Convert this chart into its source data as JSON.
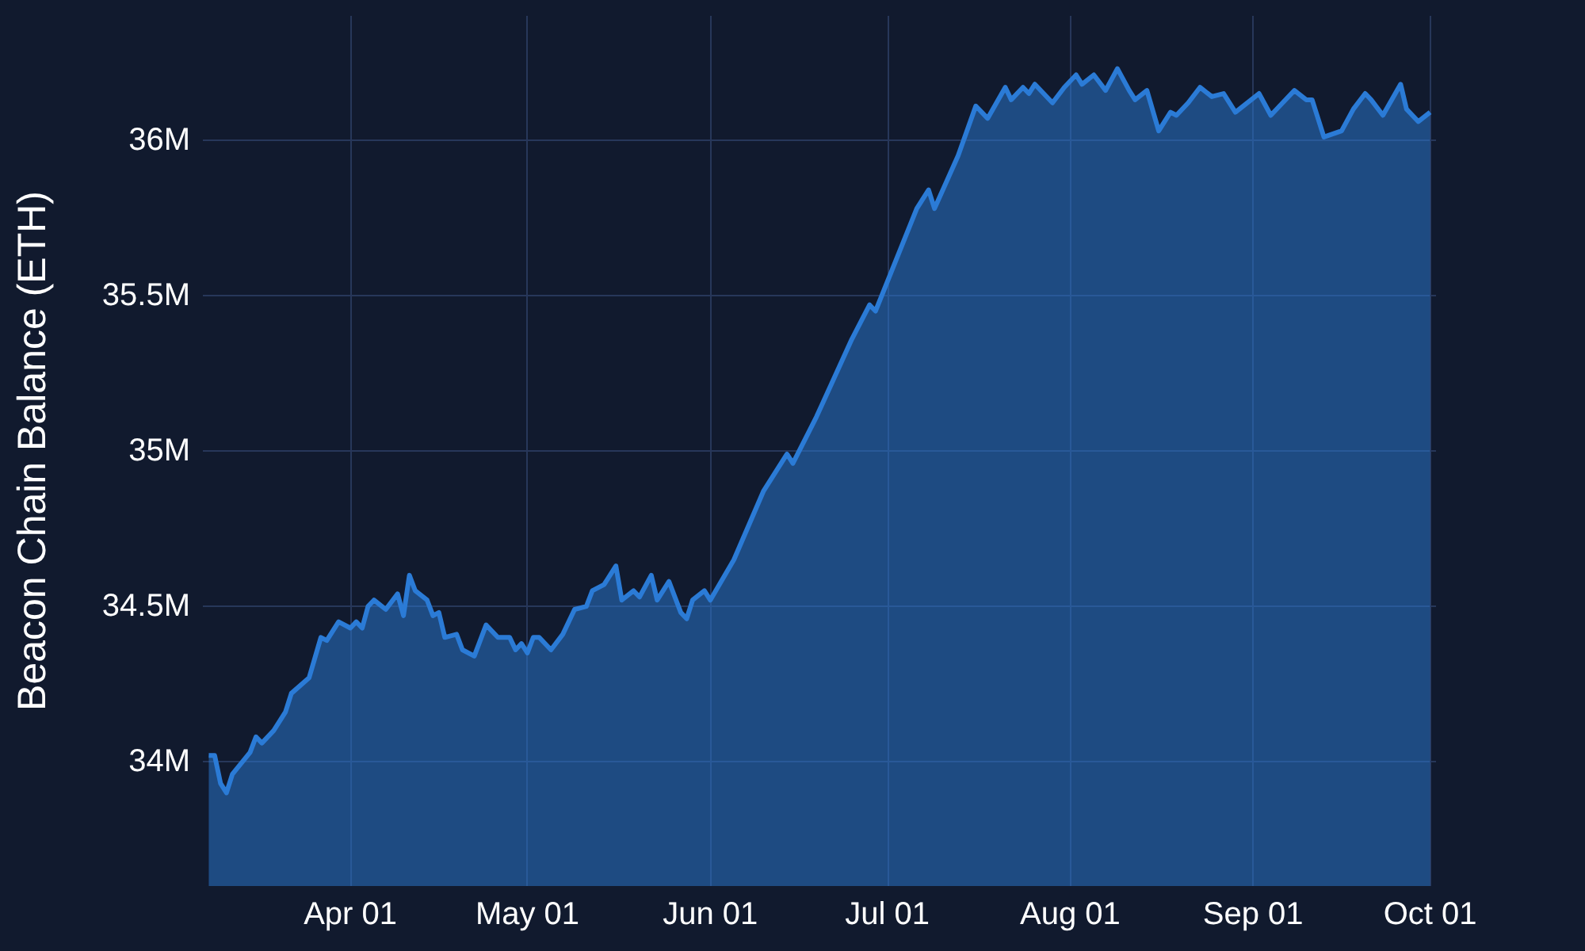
{
  "chart_data": {
    "type": "area",
    "ylabel": "Beacon Chain Balance (ETH)",
    "x": [
      "--03-08",
      "--03-09",
      "--03-10",
      "--03-11",
      "--03-12",
      "--03-15",
      "--03-16",
      "--03-17",
      "--03-19",
      "--03-21",
      "--03-22",
      "--03-25",
      "--03-27",
      "--03-28",
      "--03-30",
      "--04-01",
      "--04-02",
      "--04-03",
      "--04-04",
      "--04-05",
      "--04-07",
      "--04-09",
      "--04-10",
      "--04-11",
      "--04-12",
      "--04-14",
      "--04-15",
      "--04-16",
      "--04-17",
      "--04-19",
      "--04-20",
      "--04-22",
      "--04-24",
      "--04-26",
      "--04-28",
      "--04-29",
      "--04-30",
      "--05-01",
      "--05-02",
      "--05-03",
      "--05-05",
      "--05-07",
      "--05-09",
      "--05-11",
      "--05-12",
      "--05-14",
      "--05-16",
      "--05-17",
      "--05-19",
      "--05-20",
      "--05-22",
      "--05-23",
      "--05-25",
      "--05-27",
      "--05-28",
      "--05-29",
      "--05-31",
      "--06-01",
      "--06-05",
      "--06-10",
      "--06-14",
      "--06-15",
      "--06-19",
      "--06-25",
      "--06-28",
      "--06-29",
      "--07-06",
      "--07-08",
      "--07-09",
      "--07-13",
      "--07-16",
      "--07-18",
      "--07-21",
      "--07-22",
      "--07-24",
      "--07-25",
      "--07-26",
      "--07-29",
      "--07-31",
      "--08-02",
      "--08-03",
      "--08-05",
      "--08-07",
      "--08-09",
      "--08-11",
      "--08-12",
      "--08-14",
      "--08-16",
      "--08-18",
      "--08-19",
      "--08-21",
      "--08-23",
      "--08-25",
      "--08-27",
      "--08-29",
      "--08-31",
      "--09-02",
      "--09-04",
      "--09-06",
      "--09-08",
      "--09-10",
      "--09-11",
      "--09-13",
      "--09-16",
      "--09-18",
      "--09-20",
      "--09-21",
      "--09-23",
      "--09-26",
      "--09-27",
      "--09-29",
      "--10-01"
    ],
    "series": [
      {
        "color": "#2b7bd6",
        "values": [
          34.02,
          34.02,
          33.93,
          33.9,
          33.96,
          34.03,
          34.08,
          34.06,
          34.1,
          34.16,
          34.22,
          34.27,
          34.4,
          34.39,
          34.45,
          34.43,
          34.45,
          34.43,
          34.5,
          34.52,
          34.49,
          34.54,
          34.47,
          34.6,
          34.55,
          34.52,
          34.47,
          34.48,
          34.4,
          34.41,
          34.36,
          34.34,
          34.44,
          34.4,
          34.4,
          34.36,
          34.38,
          34.35,
          34.4,
          34.4,
          34.36,
          34.41,
          34.49,
          34.5,
          34.55,
          34.57,
          34.63,
          34.52,
          34.55,
          34.53,
          34.6,
          34.52,
          34.58,
          34.48,
          34.46,
          34.52,
          34.55,
          34.52,
          34.65,
          34.87,
          34.99,
          34.96,
          35.11,
          35.36,
          35.47,
          35.45,
          35.78,
          35.84,
          35.78,
          35.95,
          36.11,
          36.07,
          36.17,
          36.13,
          36.17,
          36.15,
          36.18,
          36.12,
          36.17,
          36.21,
          36.18,
          36.21,
          36.16,
          36.23,
          36.16,
          36.13,
          36.16,
          36.03,
          36.09,
          36.08,
          36.12,
          36.17,
          36.14,
          36.15,
          36.09,
          36.12,
          36.15,
          36.08,
          36.12,
          36.16,
          36.13,
          36.13,
          36.01,
          36.03,
          36.1,
          36.15,
          36.13,
          36.08,
          36.18,
          36.1,
          36.06,
          36.09
        ]
      }
    ],
    "xlim": [
      "--03-07",
      "--10-02"
    ],
    "xticks": [
      {
        "value": "--04-01",
        "label": "Apr 01"
      },
      {
        "value": "--05-01",
        "label": "May 01"
      },
      {
        "value": "--06-01",
        "label": "Jun 01"
      },
      {
        "value": "--07-01",
        "label": "Jul 01"
      },
      {
        "value": "--08-01",
        "label": "Aug 01"
      },
      {
        "value": "--09-01",
        "label": "Sep 01"
      },
      {
        "value": "--10-01",
        "label": "Oct 01"
      }
    ],
    "ylim": [
      33.6,
      36.4
    ],
    "yticks": [
      {
        "value": 34,
        "label": "34M"
      },
      {
        "value": 34.5,
        "label": "34.5M"
      },
      {
        "value": 35,
        "label": "35M"
      },
      {
        "value": 35.5,
        "label": "35.5M"
      },
      {
        "value": 36,
        "label": "36M"
      }
    ],
    "grid": true,
    "marker": "none"
  }
}
